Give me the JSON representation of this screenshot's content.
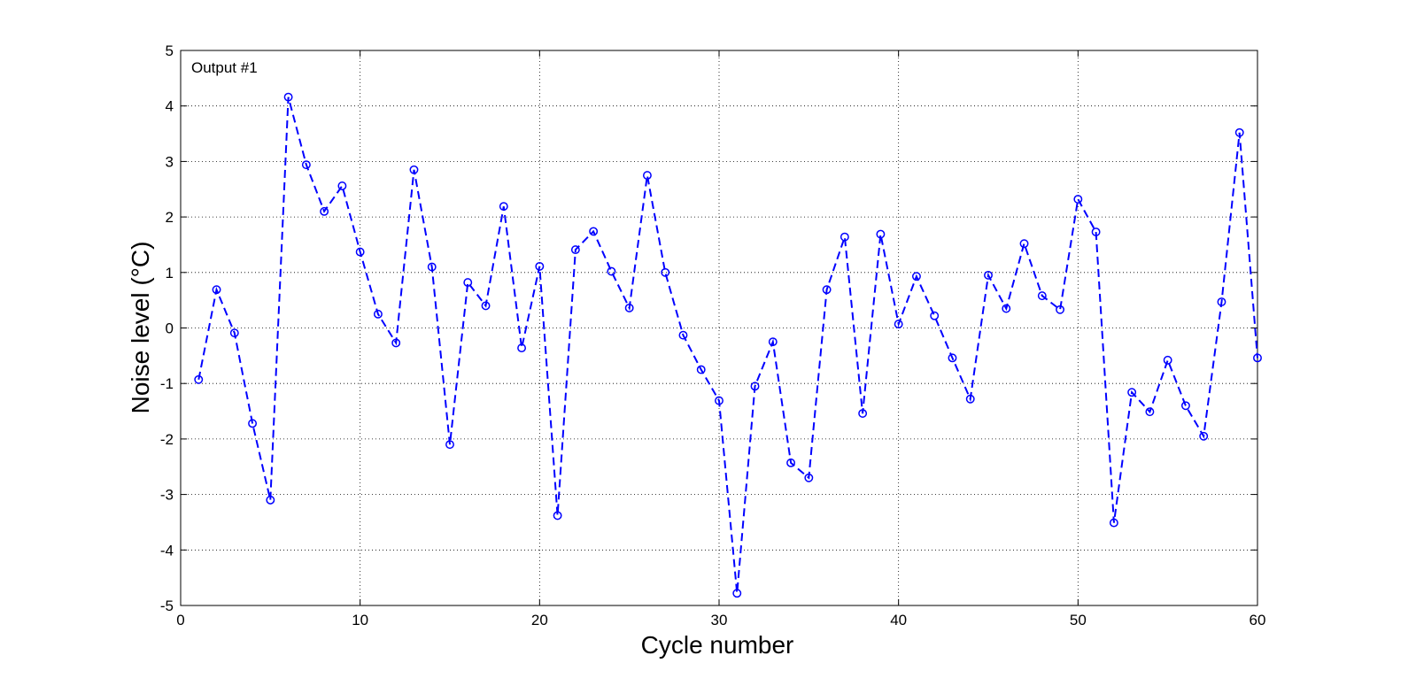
{
  "chart_data": {
    "type": "line",
    "title": "",
    "annotation": "Output #1",
    "xlabel": "Cycle number",
    "ylabel": "Noise level (°C)",
    "xlim": [
      0,
      60
    ],
    "ylim": [
      -5,
      5
    ],
    "xticks": [
      0,
      10,
      20,
      30,
      40,
      50,
      60
    ],
    "yticks": [
      -5,
      -4,
      -3,
      -2,
      -1,
      0,
      1,
      2,
      3,
      4,
      5
    ],
    "grid": true,
    "legend": "none",
    "series": [
      {
        "color": "#0000ff",
        "line_style": "dashed",
        "marker": "circle",
        "x": [
          1,
          2,
          3,
          4,
          5,
          6,
          7,
          8,
          9,
          10,
          11,
          12,
          13,
          14,
          15,
          16,
          17,
          18,
          19,
          20,
          21,
          22,
          23,
          24,
          25,
          26,
          27,
          28,
          29,
          30,
          31,
          32,
          33,
          34,
          35,
          36,
          37,
          38,
          39,
          40,
          41,
          42,
          43,
          44,
          45,
          46,
          47,
          48,
          49,
          50,
          51,
          52,
          53,
          54,
          55,
          56,
          57,
          58,
          59,
          60
        ],
        "y": [
          -0.93,
          0.69,
          -0.09,
          -1.72,
          -3.1,
          4.16,
          2.94,
          2.1,
          2.56,
          1.37,
          0.25,
          -0.27,
          2.85,
          1.1,
          -2.1,
          0.82,
          0.4,
          2.19,
          -0.36,
          1.11,
          -3.38,
          1.41,
          1.74,
          1.02,
          0.36,
          2.75,
          1.0,
          -0.13,
          -0.75,
          -1.31,
          -4.78,
          -1.05,
          -0.25,
          -2.43,
          -2.7,
          0.69,
          1.64,
          -1.54,
          1.69,
          0.07,
          0.93,
          0.22,
          -0.54,
          -1.28,
          0.95,
          0.35,
          1.52,
          0.58,
          0.33,
          2.32,
          1.73,
          -3.51,
          -1.16,
          -1.51,
          -0.58,
          -1.4,
          -1.95,
          0.47,
          3.52,
          -0.54
        ]
      }
    ]
  }
}
